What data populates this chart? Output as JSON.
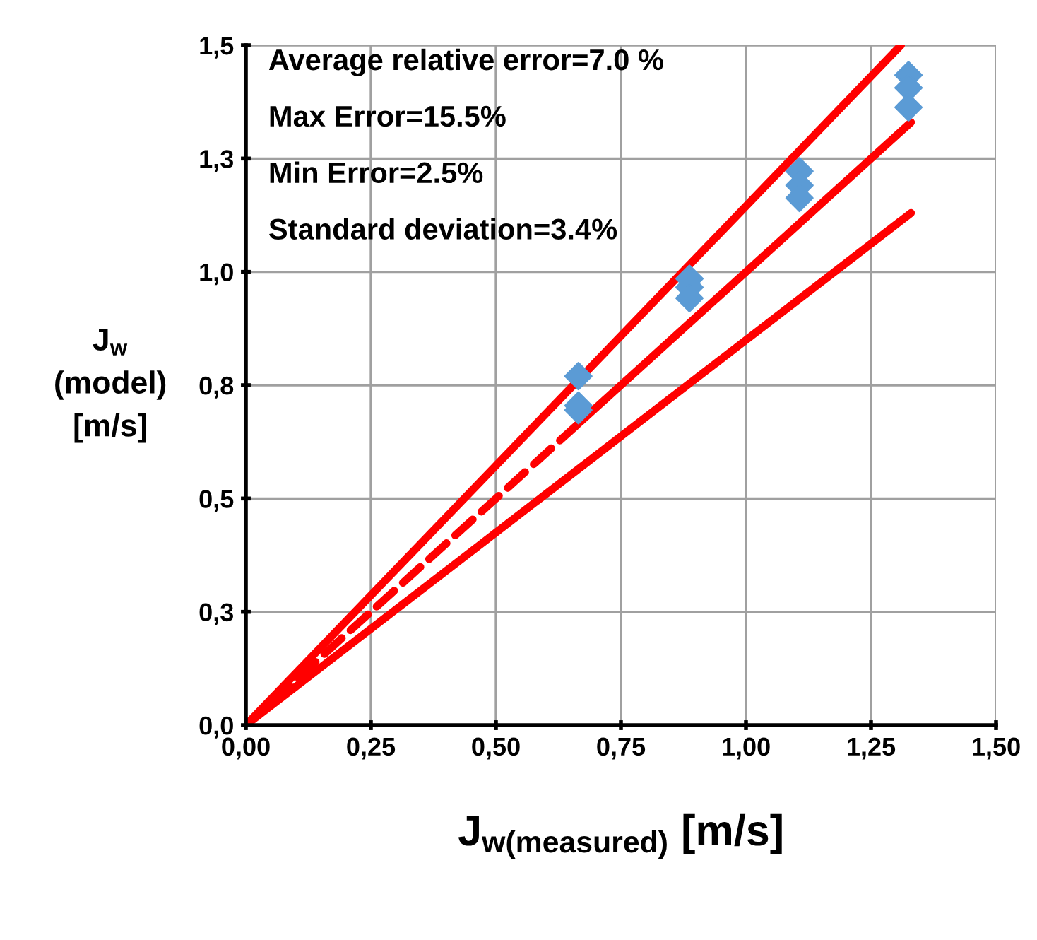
{
  "chart_data": {
    "type": "scatter",
    "xlabel": "J$_{w(measured)}$ [m/s]",
    "ylabel": "J$_{w}$\n(model)\n[m/s]",
    "annotations": [
      "Average relative error=7.0 %",
      "Max Error=15.5%",
      "Min Error=2.5%",
      "Standard deviation=3.4%"
    ],
    "xlim": [
      0,
      1.5
    ],
    "xticks": [
      {
        "value": 0,
        "label": "0,00"
      },
      {
        "value": 0.25,
        "label": "0,25"
      },
      {
        "value": 0.5,
        "label": "0,50"
      },
      {
        "value": 0.75,
        "label": "0,75"
      },
      {
        "value": 1.0,
        "label": "1,00"
      },
      {
        "value": 1.25,
        "label": "1,25"
      },
      {
        "value": 1.5,
        "label": "1,50"
      }
    ],
    "ylim": [
      0,
      1.5
    ],
    "yticks": [
      {
        "value": 0,
        "label": "0,0"
      },
      {
        "value": 0.25,
        "label": "0,3"
      },
      {
        "value": 0.5,
        "label": "0,5"
      },
      {
        "value": 0.75,
        "label": "0,8"
      },
      {
        "value": 1.0,
        "label": "1,0"
      },
      {
        "value": 1.25,
        "label": "1,3"
      },
      {
        "value": 1.5,
        "label": "1,5"
      }
    ],
    "grid": true,
    "legend": false,
    "series": [
      {
        "type": "line",
        "color": "#ff0000",
        "line_style": "solid",
        "marker": "none",
        "x": [
          0,
          1.31
        ],
        "values": [
          0,
          1.5
        ]
      },
      {
        "type": "line",
        "color": "#ff0000",
        "line_style": "dashed",
        "marker": "none",
        "x": [
          0,
          0.667
        ],
        "values": [
          0,
          0.667
        ]
      },
      {
        "type": "line",
        "color": "#ff0000",
        "line_style": "solid",
        "marker": "none",
        "x": [
          0.667,
          1.33
        ],
        "values": [
          0.667,
          1.33
        ]
      },
      {
        "type": "line",
        "color": "#ff0000",
        "line_style": "solid",
        "marker": "none",
        "x": [
          0,
          1.33
        ],
        "values": [
          0,
          1.13
        ]
      },
      {
        "type": "scatter",
        "color": "#5b9bd5",
        "marker": "diamond",
        "x": [
          0.665,
          0.665,
          0.665,
          0.887,
          0.887,
          0.887,
          1.107,
          1.107,
          1.107,
          1.325,
          1.325,
          1.325
        ],
        "values": [
          0.77,
          0.705,
          0.695,
          0.985,
          0.966,
          0.942,
          1.222,
          1.191,
          1.163,
          1.434,
          1.406,
          1.363
        ]
      }
    ]
  }
}
